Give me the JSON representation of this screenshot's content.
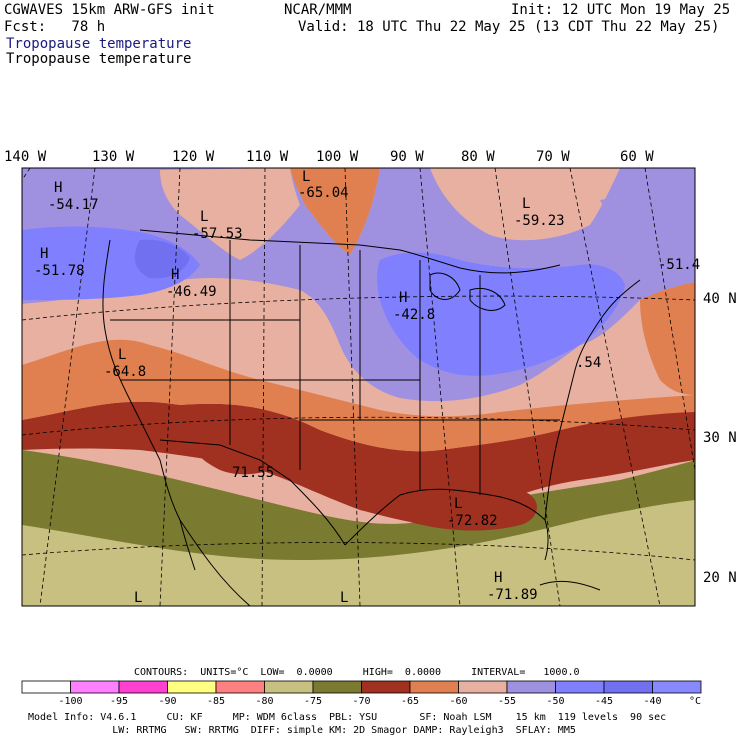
{
  "header": {
    "model_title": "CGWAVES 15km ARW-GFS init",
    "forecast": "Fcst:   78 h",
    "center": "NCAR/MMM",
    "init": "Init: 12 UTC Mon 19 May 25",
    "valid": "Valid: 18 UTC Thu 22 May 25 (13 CDT Thu 22 May 25)",
    "field_label_1": "Tropopause temperature",
    "field_label_2": "Tropopause temperature"
  },
  "longitude_labels": [
    "140 W",
    "130 W",
    "120 W",
    "110 W",
    "100 W",
    "90 W",
    "80 W",
    "70 W",
    "60 W"
  ],
  "latitude_labels": [
    "40 N",
    "30 N",
    "20 N"
  ],
  "map_labels": [
    {
      "letter": "H",
      "value": "-54.17"
    },
    {
      "letter": "L",
      "value": "-65.04"
    },
    {
      "letter": "L",
      "value": "-57.53"
    },
    {
      "letter": "L",
      "value": "-59.23"
    },
    {
      "letter": "H",
      "value": "-51.78"
    },
    {
      "letter": "H",
      "value": "-46.49"
    },
    {
      "letter": "H",
      "value": "-42.8"
    },
    {
      "letter": "",
      "value": "-51.4"
    },
    {
      "letter": "L",
      "value": "-64.8"
    },
    {
      "letter": "",
      "value": ".54"
    },
    {
      "letter": "",
      "value": "71.55"
    },
    {
      "letter": "L",
      "value": "-72.82"
    },
    {
      "letter": "H",
      "value": "-71.89"
    },
    {
      "letter": "L",
      "value": ""
    },
    {
      "letter": "L",
      "value": ""
    }
  ],
  "contour_info": "CONTOURS:  UNITS=°C  LOW=  0.0000     HIGH=  0.0000     INTERVAL=   1000.0",
  "colorbar": {
    "colors": [
      "#ffffff",
      "#ff80ff",
      "#ff40d0",
      "#ffff80",
      "#ff8080",
      "#c8c080",
      "#7a7a30",
      "#a03020",
      "#e08050",
      "#e8b0a0",
      "#a090e0",
      "#8080ff",
      "#7070f0",
      "#8888ff"
    ],
    "tick_labels": [
      "-100",
      "-95",
      "-90",
      "-85",
      "-80",
      "-75",
      "-70",
      "-65",
      "-60",
      "-55",
      "-50",
      "-45",
      "-40"
    ],
    "unit": "°C"
  },
  "footer": {
    "line1": "Model Info: V4.6.1     CU: KF     MP: WDM 6class  PBL: YSU       SF: Noah LSM    15 km  119 levels  90 sec",
    "line2": "              LW: RRTMG   SW: RRTMG  DIFF: simple KM: 2D Smagor DAMP: Rayleigh3  SFLAY: MM5"
  },
  "colors": {
    "band_olive": "#7a7a30",
    "band_khaki": "#c8c080",
    "band_darkred": "#a03020",
    "band_orange": "#e08050",
    "band_pink": "#e8b0a0",
    "band_lavender": "#a090e0",
    "band_blue": "#8080ff"
  }
}
